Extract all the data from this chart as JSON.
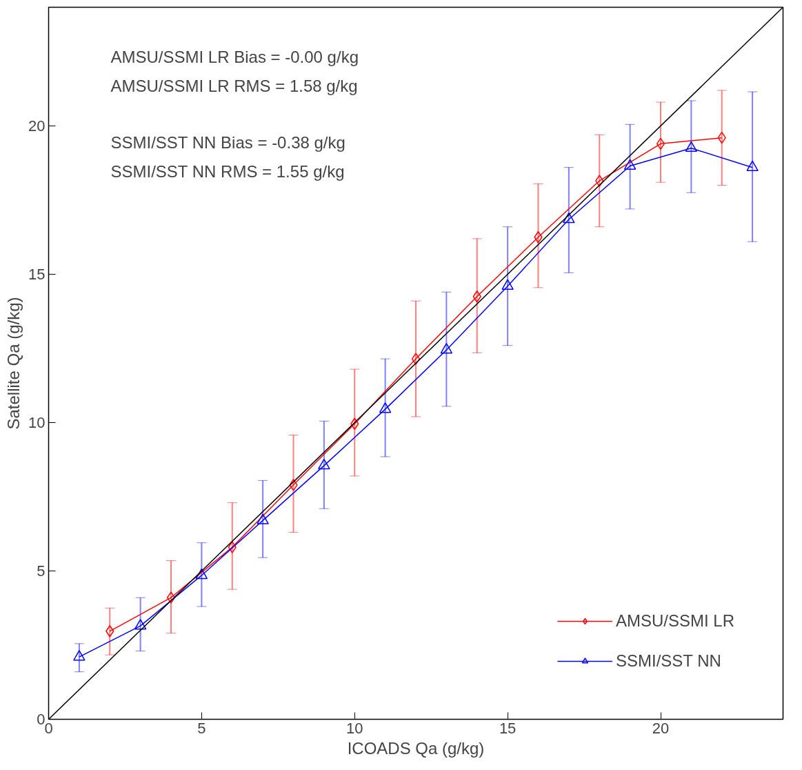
{
  "chart_data": {
    "type": "line",
    "xlabel": "ICOADS Qa (g/kg)",
    "ylabel": "Satellite Qa (g/kg)",
    "xlim": [
      0,
      24
    ],
    "ylim": [
      0,
      24
    ],
    "xticks": [
      0,
      5,
      10,
      15,
      20
    ],
    "yticks": [
      0,
      5,
      10,
      15,
      20
    ],
    "grid": false,
    "legend": "bottom right",
    "annotations": [
      "AMSU/SSMI LR Bias = -0.00 g/kg",
      "AMSU/SSMI LR RMS =  1.58 g/kg",
      "SSMI/SST NN Bias = -0.38 g/kg",
      "SSMI/SST NN RMS =  1.55 g/kg"
    ],
    "series": [
      {
        "name": "AMSU/SSMI LR",
        "color": "#ff0000",
        "marker": "diamond",
        "x": [
          2,
          4,
          6,
          8,
          10,
          12,
          14,
          16,
          18,
          20,
          22
        ],
        "values": [
          2.97,
          4.1,
          5.8,
          7.9,
          9.96,
          12.15,
          14.25,
          16.25,
          18.15,
          19.4,
          19.6
        ],
        "errors": [
          [
            2.17,
            3.75
          ],
          [
            2.9,
            5.35
          ],
          [
            4.38,
            7.3
          ],
          [
            6.3,
            9.58
          ],
          [
            8.2,
            11.8
          ],
          [
            10.2,
            14.1
          ],
          [
            12.35,
            16.2
          ],
          [
            14.55,
            18.05
          ],
          [
            16.6,
            19.7
          ],
          [
            18.1,
            20.8
          ],
          [
            18.0,
            21.2
          ]
        ]
      },
      {
        "name": "SSMI/SST NN",
        "color": "#0000ff",
        "marker": "triangle",
        "x": [
          1,
          3,
          5,
          7,
          9,
          11,
          13,
          15,
          17,
          19,
          21,
          23
        ],
        "values": [
          2.1,
          3.15,
          4.85,
          6.7,
          8.55,
          10.45,
          12.45,
          14.6,
          16.85,
          18.65,
          19.25,
          18.6
        ],
        "errors": [
          [
            1.6,
            2.55
          ],
          [
            2.3,
            4.1
          ],
          [
            3.8,
            5.95
          ],
          [
            5.45,
            8.05
          ],
          [
            7.1,
            10.05
          ],
          [
            8.85,
            12.15
          ],
          [
            10.55,
            14.4
          ],
          [
            12.6,
            16.6
          ],
          [
            15.05,
            18.6
          ],
          [
            17.2,
            20.05
          ],
          [
            17.75,
            20.85
          ],
          [
            16.1,
            21.15
          ]
        ]
      },
      {
        "color": "#000000",
        "marker": "none",
        "x": [
          0,
          24
        ],
        "values": [
          0,
          24
        ]
      }
    ]
  }
}
